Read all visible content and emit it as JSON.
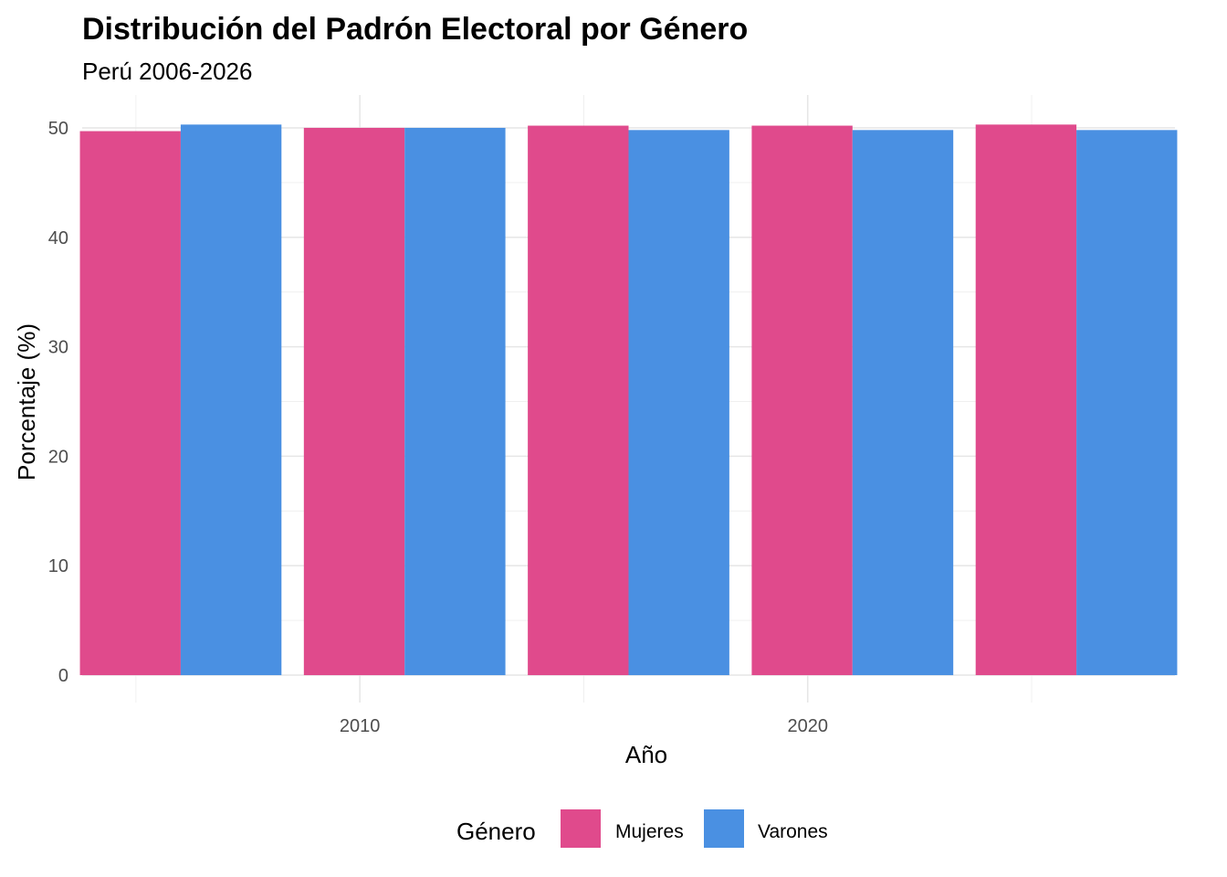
{
  "chart_data": {
    "type": "bar",
    "title": "Distribución del Padrón Electoral por Género",
    "subtitle": "Perú 2006-2026",
    "xlabel": "Año",
    "ylabel": "Porcentaje (%)",
    "categories": [
      2006,
      2011,
      2016,
      2021,
      2026
    ],
    "series": [
      {
        "name": "Mujeres",
        "color": "#E04A8C",
        "values": [
          49.7,
          50.0,
          50.2,
          50.2,
          50.3
        ]
      },
      {
        "name": "Varones",
        "color": "#4A90E2",
        "values": [
          50.3,
          50.0,
          49.8,
          49.8,
          49.8
        ]
      }
    ],
    "xlim": [
      2003.8,
      2028.2
    ],
    "ylim": [
      -2.5,
      53
    ],
    "yticks": [
      0,
      10,
      20,
      30,
      40,
      50
    ],
    "xticks": [
      2010,
      2020
    ],
    "x_minor_gridlines": [
      2005,
      2015,
      2025
    ],
    "grid": true,
    "legend": {
      "title": "Género",
      "position": "bottom"
    }
  }
}
